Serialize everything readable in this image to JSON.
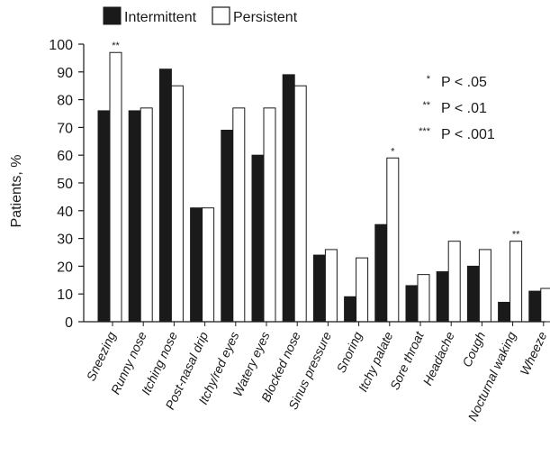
{
  "chart_data": {
    "type": "bar",
    "ylabel": "Patients, %",
    "xlabel": "",
    "ylim": [
      0,
      100
    ],
    "yticks": [
      0,
      10,
      20,
      30,
      40,
      50,
      60,
      70,
      80,
      90,
      100
    ],
    "grid": false,
    "legend_position": "top-left",
    "categories": [
      "Sneezing",
      "Runny nose",
      "Itching nose",
      "Post-nasal drip",
      "Itchy/red eyes",
      "Watery eyes",
      "Blocked nose",
      "Sinus pressure",
      "Snoring",
      "Itchy palate",
      "Sore throat",
      "Headache",
      "Cough",
      "Nocturnal waking",
      "Wheeze"
    ],
    "series": [
      {
        "name": "Intermittent",
        "color": "#1a1a1a",
        "values": [
          76,
          76,
          91,
          41,
          69,
          60,
          89,
          24,
          9,
          35,
          13,
          18,
          20,
          7,
          11
        ]
      },
      {
        "name": "Persistent",
        "color": "#ffffff",
        "values": [
          97,
          77,
          85,
          41,
          77,
          77,
          85,
          26,
          23,
          59,
          17,
          29,
          26,
          29,
          12
        ]
      }
    ],
    "annotations": [
      {
        "category": "Sneezing",
        "text": "**"
      },
      {
        "category": "Itchy palate",
        "text": "*"
      },
      {
        "category": "Nocturnal waking",
        "text": "**"
      }
    ],
    "significance_legend": [
      {
        "mark": "*",
        "label": "P < .05"
      },
      {
        "mark": "**",
        "label": "P < .01"
      },
      {
        "mark": "***",
        "label": "P < .001"
      }
    ]
  }
}
